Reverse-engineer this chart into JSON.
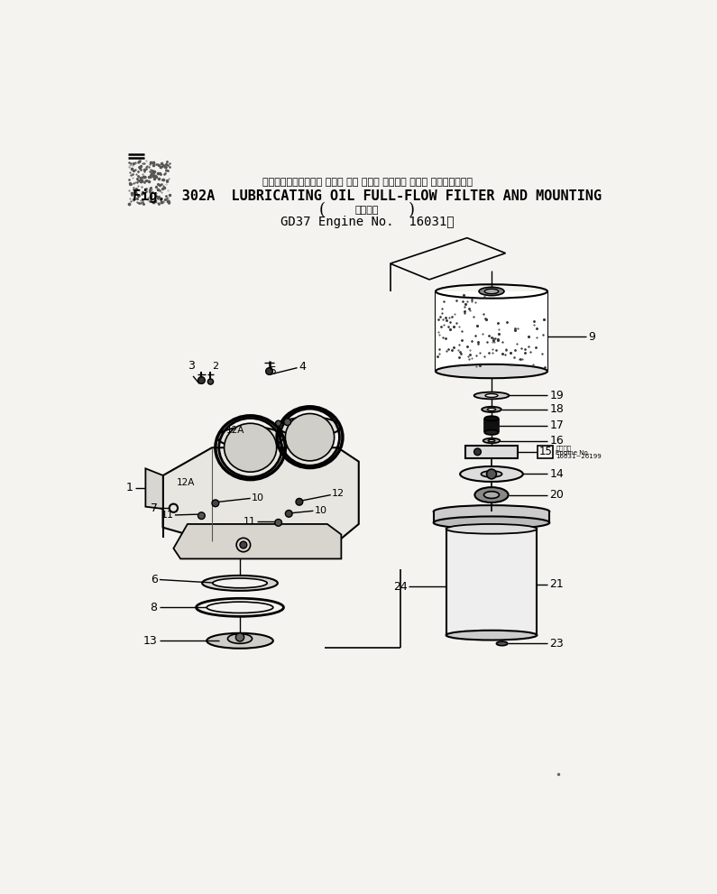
{
  "title_japanese": "ルーブリケーティング オイル フル フロー フィルタ および マウンティング",
  "title_english": "Fig.  302A  LUBRICATING OIL FULL-FLOW FILTER AND MOUNTING",
  "title_sub_jp": "適用号機",
  "title_sub_en": "GD37 Engine No.  16031～",
  "bg_color": "#f5f3ef",
  "text_color": "#000000"
}
